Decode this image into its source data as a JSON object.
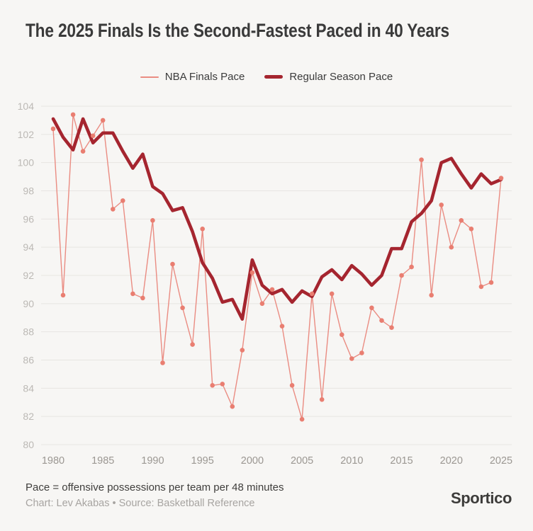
{
  "page": {
    "background": "#f7f6f4"
  },
  "header": {
    "title": "The 2025 Finals Is the Second-Fastest Paced in 40 Years"
  },
  "legend": [
    {
      "label": "NBA Finals Pace",
      "color": "#EA8C82",
      "style": "thin"
    },
    {
      "label": "Regular Season Pace",
      "color": "#A5252F",
      "style": "thick"
    }
  ],
  "chart_data": {
    "type": "line",
    "title": "The 2025 Finals Is the Second-Fastest Paced in 40 Years",
    "xlabel": "",
    "ylabel": "",
    "xlim": [
      1980,
      2025
    ],
    "ylim": [
      80,
      104
    ],
    "x_ticks": [
      1980,
      1985,
      1990,
      1995,
      2000,
      2005,
      2010,
      2015,
      2020,
      2025
    ],
    "y_ticks": [
      80,
      82,
      84,
      86,
      88,
      90,
      92,
      94,
      96,
      98,
      100,
      102,
      104
    ],
    "grid": "horizontal",
    "legend_position": "top-center",
    "x": [
      1980,
      1981,
      1982,
      1983,
      1984,
      1985,
      1986,
      1987,
      1988,
      1989,
      1990,
      1991,
      1992,
      1993,
      1994,
      1995,
      1996,
      1997,
      1998,
      1999,
      2000,
      2001,
      2002,
      2003,
      2004,
      2005,
      2006,
      2007,
      2008,
      2009,
      2010,
      2011,
      2012,
      2013,
      2014,
      2015,
      2016,
      2017,
      2018,
      2019,
      2020,
      2021,
      2022,
      2023,
      2024,
      2025
    ],
    "series": [
      {
        "name": "NBA Finals Pace",
        "color": "#EA8C82",
        "dot_color": "#E97E71",
        "style": "thin-with-dots",
        "values": [
          102.4,
          90.6,
          103.4,
          100.8,
          101.9,
          103.0,
          96.7,
          97.3,
          90.7,
          90.4,
          95.9,
          85.8,
          92.8,
          89.7,
          87.1,
          95.3,
          84.2,
          84.3,
          82.7,
          86.7,
          92.2,
          90.0,
          91.0,
          88.4,
          84.2,
          81.8,
          90.7,
          83.2,
          90.7,
          87.8,
          86.1,
          86.5,
          89.7,
          88.8,
          88.3,
          92.0,
          92.6,
          100.2,
          90.6,
          97.0,
          94.0,
          95.9,
          95.3,
          91.2,
          91.5,
          98.9
        ]
      },
      {
        "name": "Regular Season Pace",
        "color": "#A5252F",
        "style": "thick",
        "values": [
          103.1,
          101.8,
          100.9,
          103.1,
          101.4,
          102.1,
          102.1,
          100.8,
          99.6,
          100.6,
          98.3,
          97.8,
          96.6,
          96.8,
          95.1,
          92.9,
          91.8,
          90.1,
          90.3,
          88.9,
          93.1,
          91.3,
          90.7,
          91.0,
          90.1,
          90.9,
          90.5,
          91.9,
          92.4,
          91.7,
          92.7,
          92.1,
          91.3,
          92.0,
          93.9,
          93.9,
          95.8,
          96.4,
          97.3,
          100.0,
          100.3,
          99.2,
          98.2,
          99.2,
          98.5,
          98.8
        ]
      }
    ]
  },
  "footer": {
    "note": "Pace = offensive possessions per team per 48 minutes",
    "credit": "Chart: Lev Akabas • Source: Basketball Reference",
    "logo": "Sportico"
  }
}
